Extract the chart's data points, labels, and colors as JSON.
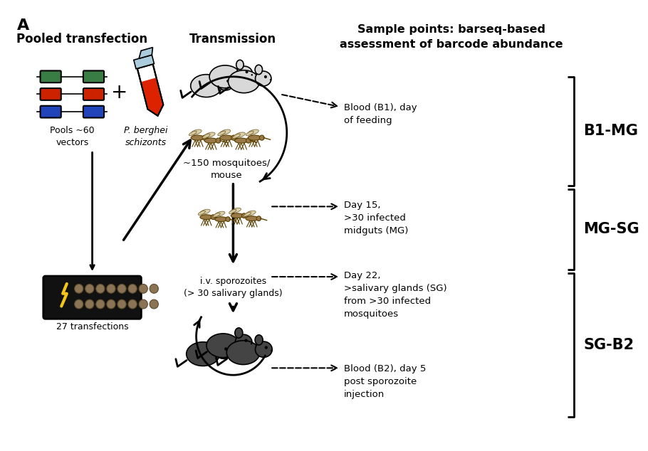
{
  "background_color": "#ffffff",
  "panel_label": "A",
  "col1_title": "Pooled transfection",
  "col2_title": "Transmission",
  "col3_title": "Sample points: barseq-based\nassessment of barcode abundance",
  "label_pools": "Pools ~60\nvectors",
  "label_berghei": "P. berghei\nschizonts",
  "label_mosquitoes": "~150 mosquitoes/\nmouse",
  "label_transfections": "27 transfections",
  "label_sporozoites": "i.v. sporozoites\n(> 30 salivary glands)",
  "sample_b1": "Blood (B1), day\nof feeding",
  "sample_mg": "Day 15,\n>30 infected\nmidguts (MG)",
  "sample_sg": "Day 22,\n>salivary glands (SG)\nfrom >30 infected\nmosquitoes",
  "sample_b2": "Blood (B2), day 5\npost sporozoite\ninjection",
  "bracket_b1mg": "B1-MG",
  "bracket_mgsg": "MG-SG",
  "bracket_sgb2": "SG-B2",
  "color_green": "#3a7d44",
  "color_red": "#cc2200",
  "color_blue": "#2244bb",
  "color_black": "#000000",
  "color_yellow": "#f5c518",
  "color_mouse_light": "#d8d8d8",
  "color_mouse_dark": "#444444",
  "color_mosquito": "#9b7a4a",
  "color_tube_red": "#dd2200",
  "color_tube_cap": "#aaccdd",
  "color_plate": "#111111",
  "color_well": "#8B7355"
}
